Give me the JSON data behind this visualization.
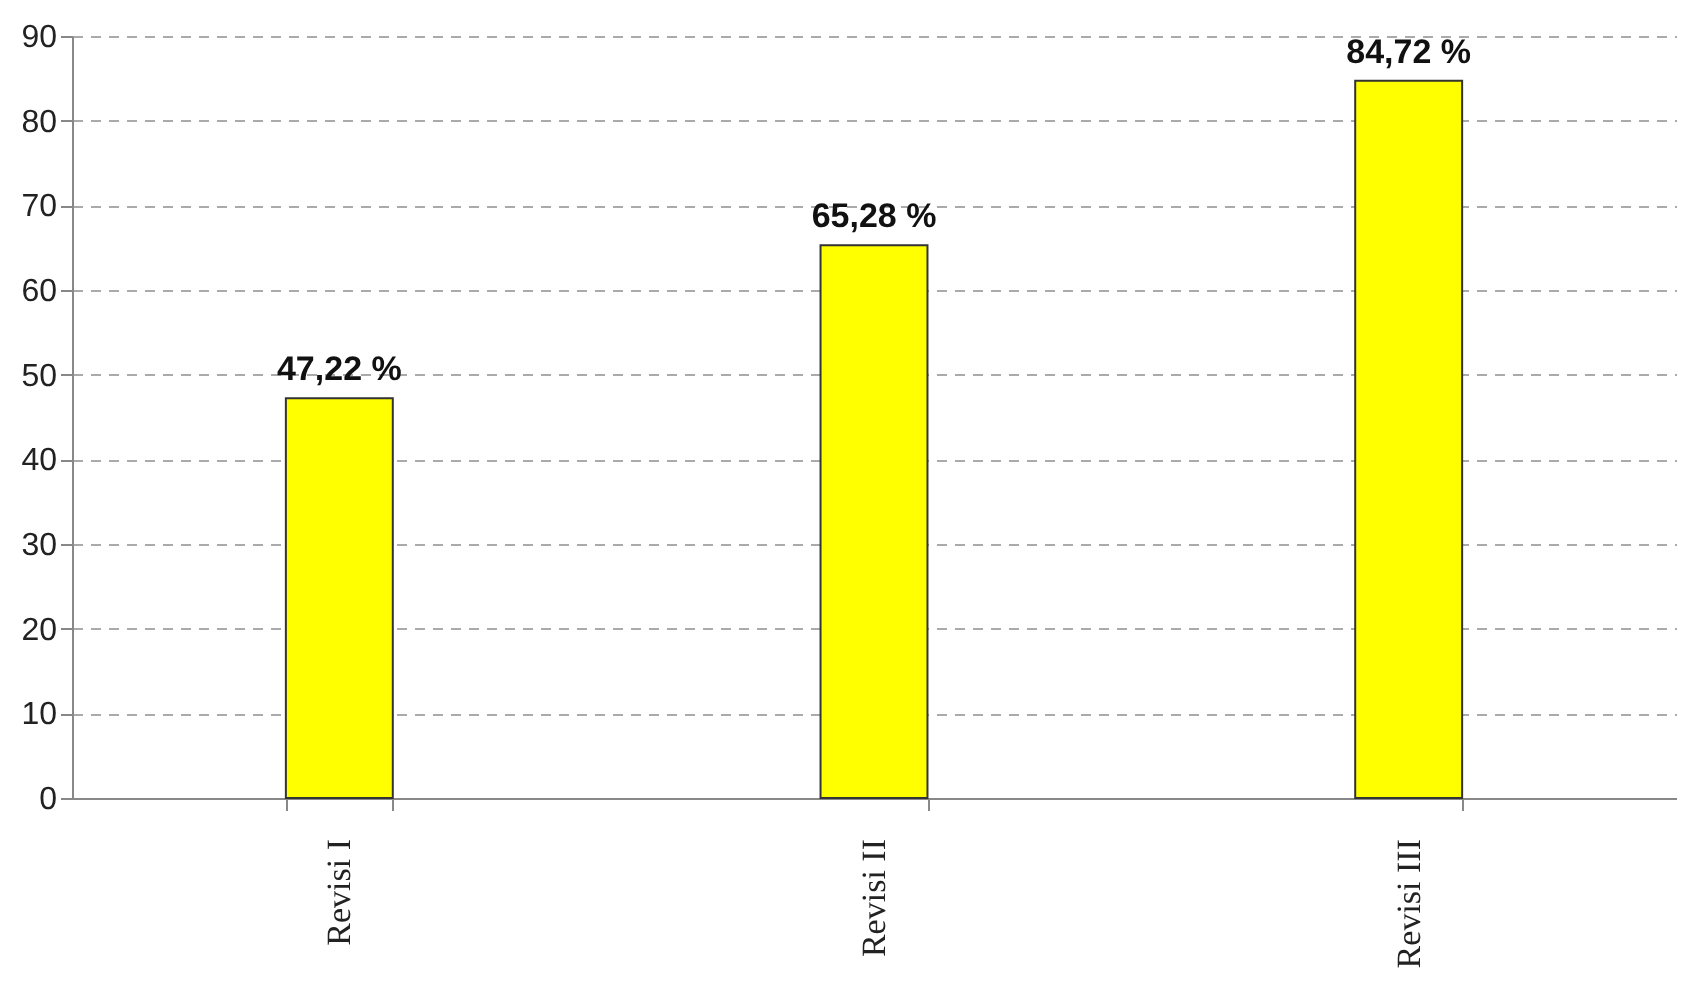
{
  "chart_data": {
    "type": "bar",
    "categories": [
      "Revisi I",
      "Revisi II",
      "Revisi III"
    ],
    "values": [
      47.22,
      65.28,
      84.72
    ],
    "color": "#ffff00",
    "value_labels": [
      "47,22 %",
      "65,28 %",
      "84,72 %"
    ],
    "ylim": [
      0,
      90
    ],
    "yticks": [
      0,
      10,
      20,
      30,
      40,
      50,
      60,
      70,
      80,
      90
    ],
    "grid": "y"
  }
}
